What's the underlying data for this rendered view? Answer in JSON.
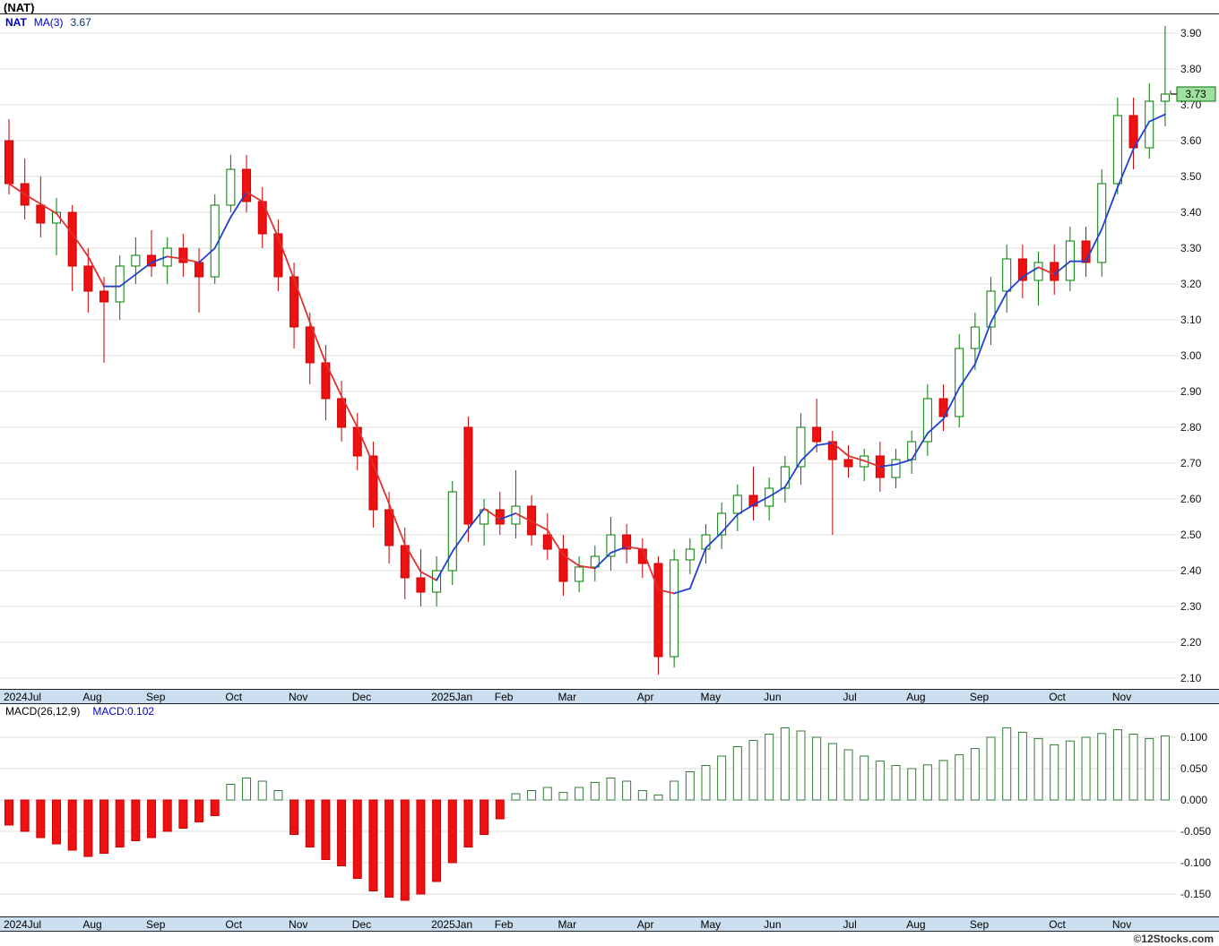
{
  "header": {
    "title": "(NAT)",
    "symbol": "NAT",
    "ma_label": "MA(3)",
    "ma_value": "3.67"
  },
  "macd_header": {
    "label": "MACD(26,12,9)",
    "value": "MACD:0.102"
  },
  "watermark": "©12Stocks.com",
  "chart_data": [
    {
      "type": "candlestick",
      "title": "NAT weekly candlestick chart with MA(3)",
      "x_labels": [
        "2024Jul",
        "Aug",
        "Sep",
        "Oct",
        "Nov",
        "Dec",
        "2025Jan",
        "Feb",
        "Mar",
        "Apr",
        "May",
        "Jun",
        "Jul",
        "Aug",
        "Sep",
        "Oct",
        "Nov"
      ],
      "month_counts": [
        5,
        4,
        5,
        4,
        4,
        5,
        4,
        4,
        5,
        4,
        4,
        5,
        4,
        4,
        5,
        4,
        4
      ],
      "ylim": [
        2.1,
        3.9
      ],
      "ytick_step": 0.1,
      "ma_period": 3,
      "last_price": 3.73,
      "colors": {
        "up": "#007a00",
        "down": "#cc0000",
        "down_fill": "#ee1111",
        "ma_up": "#2040d0",
        "ma_down": "#e03030",
        "last_price_box": "#9fe09f"
      },
      "ohlc": [
        [
          3.6,
          3.66,
          3.45,
          3.48
        ],
        [
          3.48,
          3.55,
          3.38,
          3.42
        ],
        [
          3.42,
          3.5,
          3.33,
          3.37
        ],
        [
          3.37,
          3.44,
          3.28,
          3.4
        ],
        [
          3.4,
          3.42,
          3.18,
          3.25
        ],
        [
          3.25,
          3.3,
          3.12,
          3.18
        ],
        [
          3.18,
          3.22,
          2.98,
          3.15
        ],
        [
          3.15,
          3.28,
          3.1,
          3.25
        ],
        [
          3.25,
          3.33,
          3.2,
          3.28
        ],
        [
          3.28,
          3.35,
          3.22,
          3.25
        ],
        [
          3.25,
          3.33,
          3.2,
          3.3
        ],
        [
          3.3,
          3.34,
          3.22,
          3.26
        ],
        [
          3.26,
          3.3,
          3.12,
          3.22
        ],
        [
          3.22,
          3.45,
          3.2,
          3.42
        ],
        [
          3.42,
          3.56,
          3.4,
          3.52
        ],
        [
          3.52,
          3.56,
          3.4,
          3.43
        ],
        [
          3.43,
          3.47,
          3.3,
          3.34
        ],
        [
          3.34,
          3.38,
          3.18,
          3.22
        ],
        [
          3.22,
          3.26,
          3.02,
          3.08
        ],
        [
          3.08,
          3.12,
          2.92,
          2.98
        ],
        [
          2.98,
          3.03,
          2.82,
          2.88
        ],
        [
          2.88,
          2.93,
          2.76,
          2.8
        ],
        [
          2.8,
          2.84,
          2.68,
          2.72
        ],
        [
          2.72,
          2.76,
          2.52,
          2.57
        ],
        [
          2.57,
          2.62,
          2.42,
          2.47
        ],
        [
          2.47,
          2.52,
          2.32,
          2.38
        ],
        [
          2.38,
          2.46,
          2.3,
          2.34
        ],
        [
          2.34,
          2.44,
          2.3,
          2.4
        ],
        [
          2.4,
          2.65,
          2.36,
          2.62
        ],
        [
          2.8,
          2.83,
          2.48,
          2.53
        ],
        [
          2.53,
          2.6,
          2.47,
          2.57
        ],
        [
          2.57,
          2.62,
          2.5,
          2.53
        ],
        [
          2.53,
          2.68,
          2.49,
          2.58
        ],
        [
          2.58,
          2.61,
          2.47,
          2.5
        ],
        [
          2.5,
          2.56,
          2.43,
          2.46
        ],
        [
          2.46,
          2.5,
          2.33,
          2.37
        ],
        [
          2.37,
          2.44,
          2.34,
          2.41
        ],
        [
          2.41,
          2.47,
          2.37,
          2.44
        ],
        [
          2.44,
          2.55,
          2.4,
          2.5
        ],
        [
          2.5,
          2.53,
          2.42,
          2.46
        ],
        [
          2.46,
          2.49,
          2.38,
          2.42
        ],
        [
          2.42,
          2.44,
          2.11,
          2.16
        ],
        [
          2.16,
          2.46,
          2.13,
          2.43
        ],
        [
          2.43,
          2.49,
          2.39,
          2.46
        ],
        [
          2.46,
          2.53,
          2.42,
          2.5
        ],
        [
          2.5,
          2.59,
          2.46,
          2.56
        ],
        [
          2.56,
          2.64,
          2.51,
          2.61
        ],
        [
          2.61,
          2.69,
          2.54,
          2.58
        ],
        [
          2.58,
          2.66,
          2.54,
          2.63
        ],
        [
          2.63,
          2.72,
          2.59,
          2.69
        ],
        [
          2.69,
          2.84,
          2.64,
          2.8
        ],
        [
          2.8,
          2.88,
          2.73,
          2.76
        ],
        [
          2.76,
          2.79,
          2.5,
          2.71
        ],
        [
          2.71,
          2.75,
          2.66,
          2.69
        ],
        [
          2.69,
          2.74,
          2.65,
          2.72
        ],
        [
          2.72,
          2.76,
          2.62,
          2.66
        ],
        [
          2.66,
          2.74,
          2.63,
          2.71
        ],
        [
          2.71,
          2.79,
          2.67,
          2.76
        ],
        [
          2.76,
          2.92,
          2.72,
          2.88
        ],
        [
          2.88,
          2.92,
          2.79,
          2.83
        ],
        [
          2.83,
          3.06,
          2.8,
          3.02
        ],
        [
          3.02,
          3.12,
          2.96,
          3.08
        ],
        [
          3.08,
          3.22,
          3.03,
          3.18
        ],
        [
          3.18,
          3.31,
          3.12,
          3.27
        ],
        [
          3.27,
          3.31,
          3.16,
          3.21
        ],
        [
          3.21,
          3.29,
          3.14,
          3.26
        ],
        [
          3.26,
          3.31,
          3.17,
          3.21
        ],
        [
          3.21,
          3.36,
          3.18,
          3.32
        ],
        [
          3.32,
          3.36,
          3.22,
          3.26
        ],
        [
          3.26,
          3.52,
          3.22,
          3.48
        ],
        [
          3.48,
          3.72,
          3.45,
          3.67
        ],
        [
          3.67,
          3.72,
          3.52,
          3.58
        ],
        [
          3.58,
          3.76,
          3.55,
          3.71
        ],
        [
          3.71,
          3.92,
          3.64,
          3.73
        ]
      ]
    },
    {
      "type": "bar",
      "title": "MACD(26,12,9) histogram",
      "yticks": [
        0.1,
        0.05,
        0.0,
        -0.05,
        -0.1,
        -0.15
      ],
      "ylim": [
        -0.175,
        0.13
      ],
      "last_value": 0.102,
      "colors": {
        "positive_stroke": "#357a35",
        "negative_fill": "#ee1111",
        "negative_stroke": "#cc0000"
      },
      "values": [
        -0.04,
        -0.05,
        -0.06,
        -0.07,
        -0.08,
        -0.09,
        -0.085,
        -0.075,
        -0.065,
        -0.06,
        -0.05,
        -0.045,
        -0.035,
        -0.025,
        0.025,
        0.035,
        0.03,
        0.015,
        -0.055,
        -0.075,
        -0.095,
        -0.105,
        -0.125,
        -0.145,
        -0.155,
        -0.16,
        -0.15,
        -0.13,
        -0.1,
        -0.075,
        -0.055,
        -0.03,
        0.01,
        0.015,
        0.02,
        0.012,
        0.02,
        0.028,
        0.035,
        0.03,
        0.015,
        0.008,
        0.03,
        0.045,
        0.055,
        0.07,
        0.085,
        0.095,
        0.105,
        0.115,
        0.11,
        0.1,
        0.09,
        0.08,
        0.07,
        0.062,
        0.055,
        0.05,
        0.056,
        0.063,
        0.072,
        0.082,
        0.1,
        0.115,
        0.108,
        0.098,
        0.088,
        0.094,
        0.1,
        0.106,
        0.112,
        0.105,
        0.098,
        0.102
      ]
    }
  ]
}
